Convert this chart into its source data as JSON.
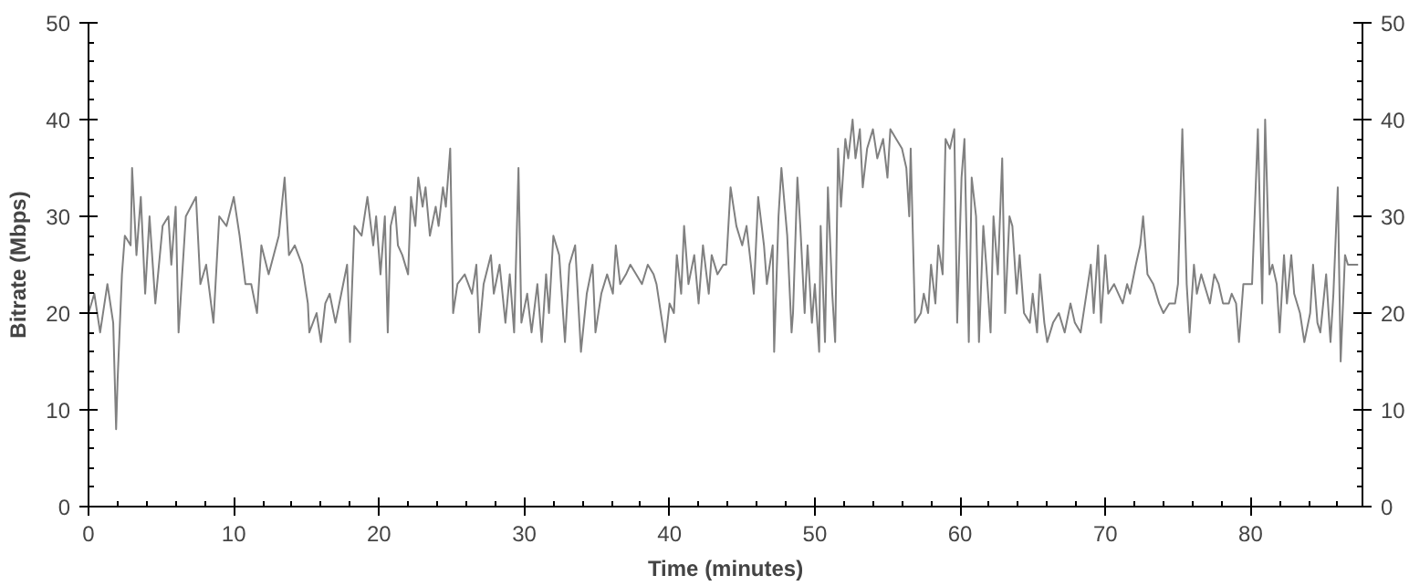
{
  "chart_data": {
    "type": "line",
    "xlabel": "Time (minutes)",
    "ylabel": "Bitrate (Mbps)",
    "xlim": [
      0,
      87.7
    ],
    "xticks": [
      0,
      10,
      20,
      30,
      40,
      50,
      60,
      70,
      80
    ],
    "ylim": [
      0,
      50
    ],
    "yticks": [
      0,
      10,
      20,
      30,
      40,
      50
    ],
    "y2lim": [
      0,
      50
    ],
    "y2ticks": [
      0,
      10,
      20,
      30,
      40,
      50
    ],
    "series": [
      {
        "color": "#808080",
        "x": [
          0,
          0.4,
          0.8,
          1.3,
          1.7,
          1.9,
          2.0,
          2.3,
          2.5,
          2.9,
          3.0,
          3.3,
          3.6,
          3.9,
          4.2,
          4.6,
          5.1,
          5.5,
          5.7,
          6.0,
          6.2,
          6.7,
          7.4,
          7.7,
          8.1,
          8.6,
          9.0,
          9.5,
          10.0,
          10.4,
          10.8,
          11.2,
          11.6,
          11.9,
          12.4,
          13.1,
          13.5,
          13.8,
          14.2,
          14.7,
          15.1,
          15.2,
          15.7,
          16.0,
          16.3,
          16.6,
          17.0,
          17.4,
          17.8,
          18.0,
          18.3,
          18.8,
          19.2,
          19.6,
          19.8,
          20.1,
          20.4,
          20.6,
          20.8,
          21.1,
          21.3,
          21.6,
          22.0,
          22.2,
          22.5,
          22.7,
          23.0,
          23.2,
          23.5,
          23.9,
          24.1,
          24.4,
          24.6,
          24.9,
          25.1,
          25.4,
          25.9,
          26.4,
          26.7,
          26.9,
          27.2,
          27.7,
          27.9,
          28.3,
          28.7,
          29.0,
          29.3,
          29.6,
          29.8,
          30.2,
          30.5,
          30.9,
          31.2,
          31.5,
          31.7,
          32.0,
          32.4,
          32.8,
          33.1,
          33.5,
          33.9,
          34.3,
          34.7,
          34.9,
          35.3,
          35.7,
          36.1,
          36.3,
          36.6,
          37.0,
          37.3,
          37.7,
          38.1,
          38.5,
          38.9,
          39.1,
          39.5,
          39.7,
          40.0,
          40.3,
          40.5,
          40.8,
          41.0,
          41.3,
          41.7,
          42.0,
          42.3,
          42.7,
          42.9,
          43.3,
          43.7,
          43.9,
          44.2,
          44.6,
          45.0,
          45.3,
          45.6,
          45.8,
          46.1,
          46.5,
          46.7,
          47.1,
          47.2,
          47.5,
          47.7,
          48.1,
          48.4,
          48.5,
          48.8,
          49.0,
          49.3,
          49.5,
          49.8,
          50.0,
          50.3,
          50.4,
          50.7,
          50.9,
          51.2,
          51.4,
          51.6,
          51.8,
          52.1,
          52.3,
          52.6,
          52.8,
          53.1,
          53.3,
          53.6,
          54.0,
          54.3,
          54.7,
          55.0,
          55.2,
          55.6,
          56.0,
          56.3,
          56.5,
          56.6,
          56.9,
          57.3,
          57.5,
          57.8,
          58.0,
          58.3,
          58.5,
          58.8,
          59.0,
          59.3,
          59.6,
          59.8,
          60.1,
          60.3,
          60.6,
          60.8,
          61.1,
          61.3,
          61.6,
          61.8,
          62.1,
          62.3,
          62.6,
          62.9,
          63.1,
          63.4,
          63.6,
          63.9,
          64.1,
          64.4,
          64.8,
          65.0,
          65.3,
          65.5,
          65.8,
          66.0,
          66.4,
          66.8,
          67.2,
          67.6,
          67.9,
          68.3,
          68.7,
          69.0,
          69.2,
          69.5,
          69.7,
          70.0,
          70.2,
          70.6,
          70.9,
          71.2,
          71.5,
          71.7,
          72.1,
          72.4,
          72.6,
          72.9,
          73.3,
          73.7,
          74.0,
          74.4,
          74.8,
          75.0,
          75.3,
          75.6,
          75.8,
          76.1,
          76.3,
          76.6,
          77.0,
          77.2,
          77.5,
          77.8,
          78.1,
          78.5,
          78.7,
          79.0,
          79.2,
          79.5,
          79.7,
          80.1,
          80.5,
          80.8,
          81.0,
          81.3,
          81.5,
          81.8,
          82.0,
          82.3,
          82.5,
          82.8,
          83.0,
          83.4,
          83.7,
          84.1,
          84.3,
          84.6,
          84.8,
          85.2,
          85.5,
          85.7,
          86.0,
          86.2,
          86.5,
          86.7,
          87.0,
          87.4
        ],
        "values": [
          20,
          22,
          18,
          23,
          19,
          8,
          13,
          24,
          28,
          27,
          35,
          26,
          32,
          22,
          30,
          21,
          29,
          30,
          25,
          31,
          18,
          30,
          32,
          23,
          25,
          19,
          30,
          29,
          32,
          28,
          23,
          23,
          20,
          27,
          24,
          28,
          34,
          26,
          27,
          25,
          21,
          18,
          20,
          17,
          21,
          22,
          19,
          22,
          25,
          17,
          29,
          28,
          32,
          27,
          30,
          24,
          30,
          18,
          29,
          31,
          27,
          26,
          24,
          32,
          29,
          34,
          31,
          33,
          28,
          31,
          29,
          33,
          31,
          37,
          20,
          23,
          24,
          22,
          25,
          18,
          23,
          26,
          22,
          25,
          19,
          24,
          18,
          35,
          19,
          22,
          18,
          23,
          17,
          24,
          20,
          28,
          26,
          17,
          25,
          27,
          16,
          22,
          25,
          18,
          22,
          24,
          22,
          27,
          23,
          24,
          25,
          24,
          23,
          25,
          24,
          23,
          19,
          17,
          21,
          20,
          26,
          22,
          29,
          23,
          26,
          21,
          27,
          22,
          26,
          24,
          25,
          25,
          33,
          29,
          27,
          29,
          25,
          22,
          32,
          27,
          23,
          27,
          16,
          30,
          35,
          28,
          18,
          20,
          34,
          29,
          20,
          27,
          19,
          23,
          16,
          29,
          17,
          33,
          22,
          17,
          37,
          31,
          38,
          36,
          40,
          36,
          39,
          33,
          37,
          39,
          36,
          38,
          34,
          39,
          38,
          37,
          35,
          30,
          37,
          19,
          20,
          22,
          20,
          25,
          21,
          27,
          24,
          38,
          37,
          39,
          19,
          34,
          38,
          17,
          34,
          30,
          17,
          29,
          25,
          18,
          30,
          24,
          36,
          20,
          30,
          29,
          22,
          26,
          20,
          19,
          22,
          18,
          24,
          19,
          17,
          19,
          20,
          18,
          21,
          19,
          18,
          22,
          25,
          20,
          27,
          19,
          26,
          22,
          23,
          22,
          21,
          23,
          22,
          25,
          27,
          30,
          24,
          23,
          21,
          20,
          21,
          21,
          23,
          39,
          23,
          18,
          25,
          22,
          24,
          22,
          21,
          24,
          23,
          21,
          21,
          22,
          21,
          17,
          23,
          23,
          23,
          39,
          21,
          40,
          24,
          25,
          23,
          18,
          26,
          21,
          26,
          22,
          20,
          17,
          20,
          25,
          19,
          18,
          24,
          17,
          22,
          33,
          15,
          26,
          25,
          25,
          25
        ]
      }
    ]
  }
}
